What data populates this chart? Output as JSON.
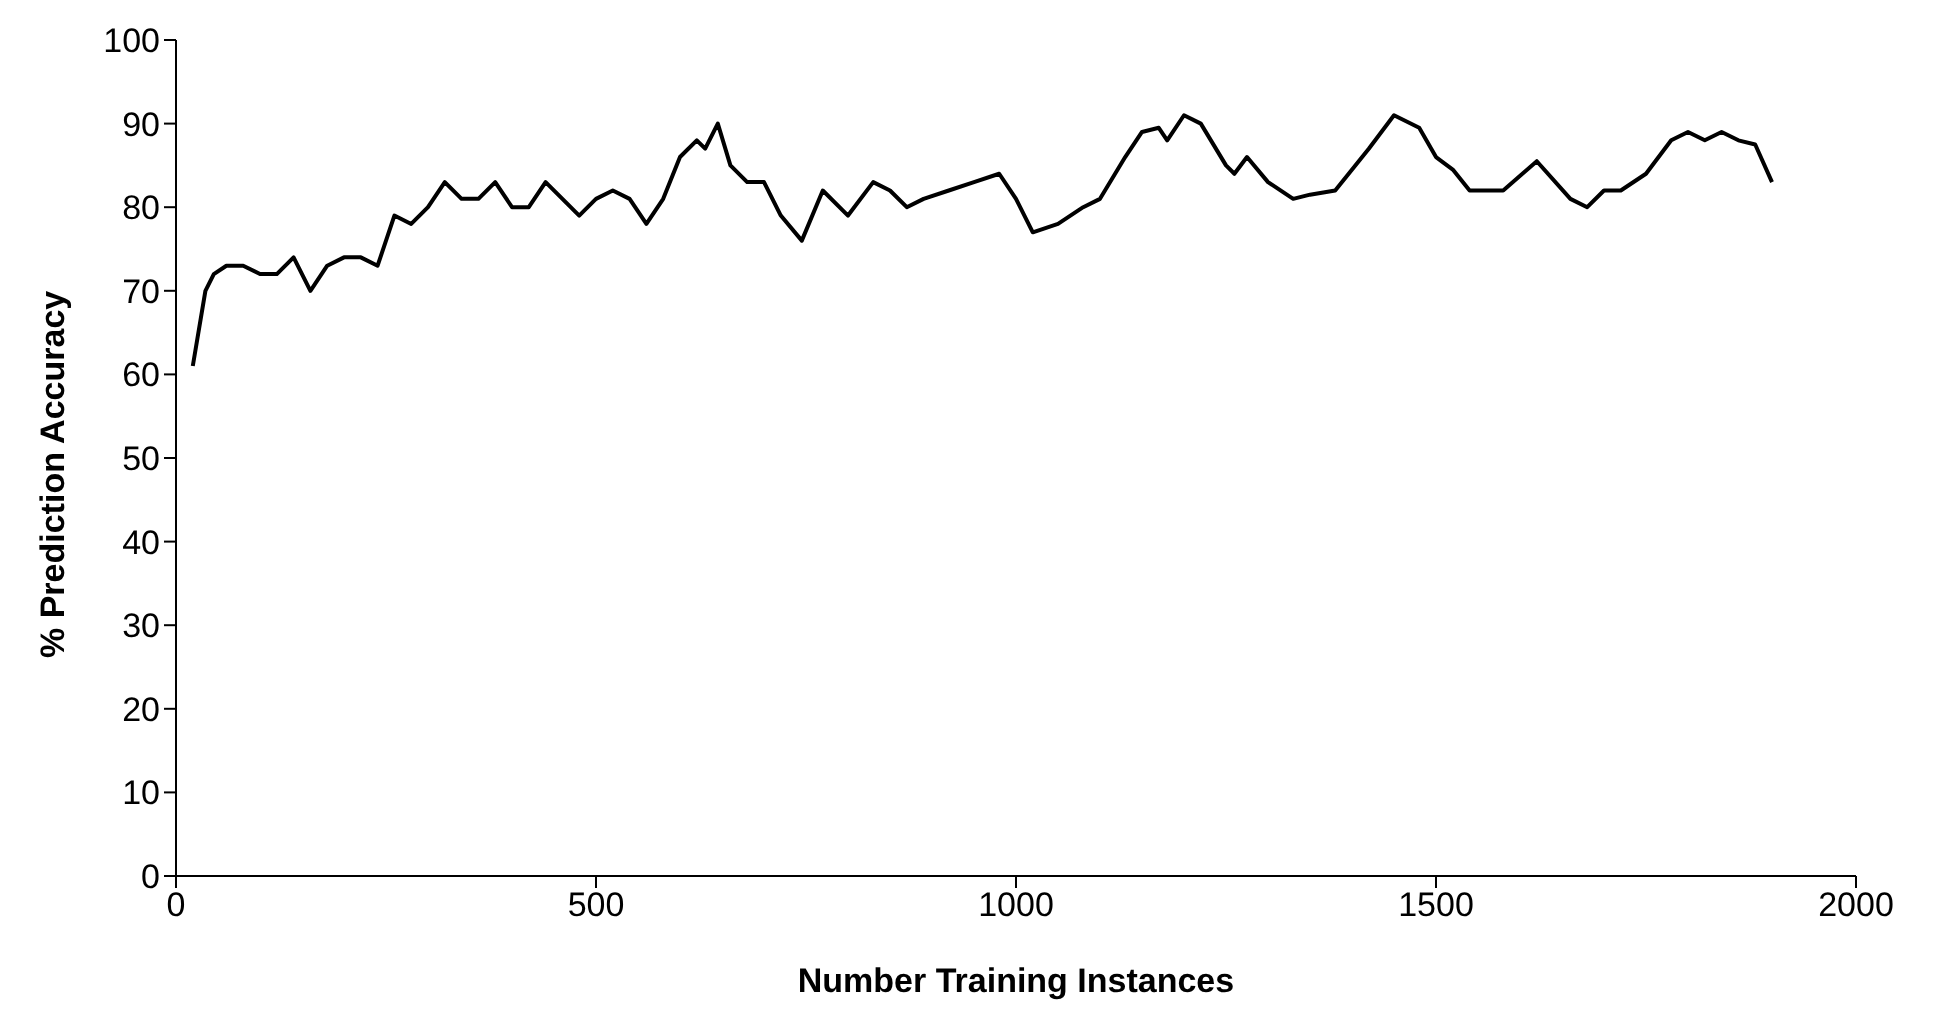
{
  "chart_data": {
    "type": "line",
    "xlabel": "Number Training Instances",
    "ylabel": "% Prediction Accuracy",
    "xlim": [
      0,
      2000
    ],
    "xticks": [
      0,
      500,
      1000,
      1500,
      2000
    ],
    "ylim": [
      0,
      100
    ],
    "yticks": [
      0,
      10,
      20,
      30,
      40,
      50,
      60,
      70,
      80,
      90,
      100
    ],
    "grid": false,
    "legend": false,
    "marker": "none",
    "line_style": "solid",
    "series": [
      {
        "color": "#000000",
        "x": [
          20,
          35,
          45,
          60,
          80,
          100,
          120,
          140,
          160,
          180,
          200,
          220,
          240,
          260,
          280,
          300,
          320,
          340,
          360,
          380,
          400,
          420,
          440,
          460,
          480,
          500,
          520,
          540,
          560,
          580,
          600,
          620,
          630,
          645,
          660,
          680,
          700,
          720,
          745,
          770,
          800,
          830,
          850,
          870,
          890,
          920,
          950,
          980,
          1000,
          1020,
          1050,
          1080,
          1100,
          1130,
          1150,
          1170,
          1180,
          1200,
          1220,
          1250,
          1260,
          1275,
          1300,
          1330,
          1350,
          1380,
          1420,
          1450,
          1480,
          1500,
          1520,
          1540,
          1560,
          1580,
          1620,
          1660,
          1680,
          1700,
          1720,
          1750,
          1780,
          1800,
          1820,
          1840,
          1860,
          1880,
          1900
        ],
        "values": [
          61,
          70,
          72,
          73,
          73,
          72,
          72,
          74,
          70,
          73,
          74,
          74,
          73,
          79,
          78,
          80,
          83,
          81,
          81,
          83,
          80,
          80,
          83,
          81,
          79,
          81,
          82,
          81,
          78,
          81,
          86,
          88,
          87,
          90,
          85,
          83,
          83,
          79,
          76,
          82,
          79,
          83,
          82,
          80,
          81,
          82,
          83,
          84,
          81,
          77,
          78,
          80,
          81,
          86,
          89,
          89.5,
          88,
          91,
          90,
          85,
          84,
          86,
          83,
          81,
          81.5,
          82,
          87,
          91,
          89.5,
          86,
          84.5,
          82,
          82,
          82,
          85.5,
          81,
          80,
          82,
          82,
          84,
          88,
          89,
          88,
          89,
          88,
          87.5,
          83
        ]
      }
    ]
  }
}
